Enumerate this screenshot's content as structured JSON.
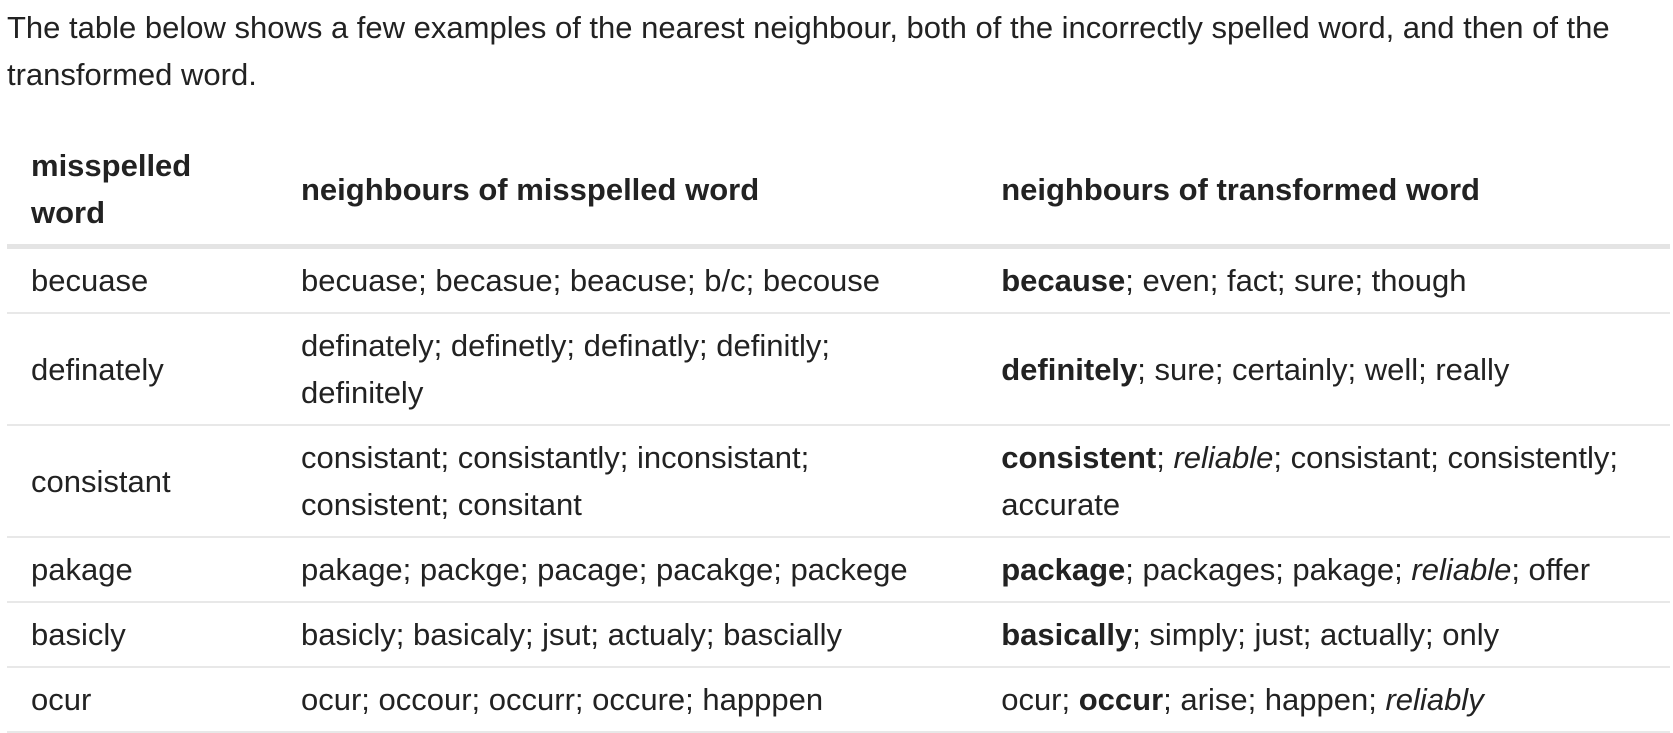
{
  "intro": "The table below shows a few examples of the nearest neighbour, both of the incorrectly spelled word, and then of the transformed word.",
  "table": {
    "headers": [
      "misspelled word",
      "neighbours of misspelled word",
      "neighbours of transformed word"
    ],
    "rows": [
      {
        "word": "becuase",
        "misspelled_neighbours": "becuase; becasue; beacuse; b/c; becouse",
        "transformed_neighbours": [
          {
            "text": "because",
            "style": "bold"
          },
          {
            "text": "; even; fact; sure; though",
            "style": "normal"
          }
        ]
      },
      {
        "word": "definately",
        "misspelled_neighbours": "definately; definetly; definatly; definitly; definitely",
        "transformed_neighbours": [
          {
            "text": "definitely",
            "style": "bold"
          },
          {
            "text": "; sure; certainly; well; really",
            "style": "normal"
          }
        ]
      },
      {
        "word": "consistant",
        "misspelled_neighbours": "consistant; consistantly; inconsistant; consistent; consitant",
        "transformed_neighbours": [
          {
            "text": "consistent",
            "style": "bold"
          },
          {
            "text": "; ",
            "style": "normal"
          },
          {
            "text": "reliable",
            "style": "italic"
          },
          {
            "text": "; consistant; consistently; accurate",
            "style": "normal"
          }
        ]
      },
      {
        "word": "pakage",
        "misspelled_neighbours": "pakage; packge; pacage; pacakge; packege",
        "transformed_neighbours": [
          {
            "text": "package",
            "style": "bold"
          },
          {
            "text": "; packages; pakage; ",
            "style": "normal"
          },
          {
            "text": "reliable",
            "style": "italic"
          },
          {
            "text": "; offer",
            "style": "normal"
          }
        ]
      },
      {
        "word": "basicly",
        "misspelled_neighbours": "basicly; basicaly; jsut; actualy; bascially",
        "transformed_neighbours": [
          {
            "text": "basically",
            "style": "bold"
          },
          {
            "text": "; simply; just; actually; only",
            "style": "normal"
          }
        ]
      },
      {
        "word": "ocur",
        "misspelled_neighbours": "ocur; occour; occurr; occure; happpen",
        "transformed_neighbours": [
          {
            "text": "ocur; ",
            "style": "normal"
          },
          {
            "text": "occur",
            "style": "bold"
          },
          {
            "text": "; arise; happen; ",
            "style": "normal"
          },
          {
            "text": "reliably",
            "style": "italic"
          }
        ]
      }
    ]
  }
}
